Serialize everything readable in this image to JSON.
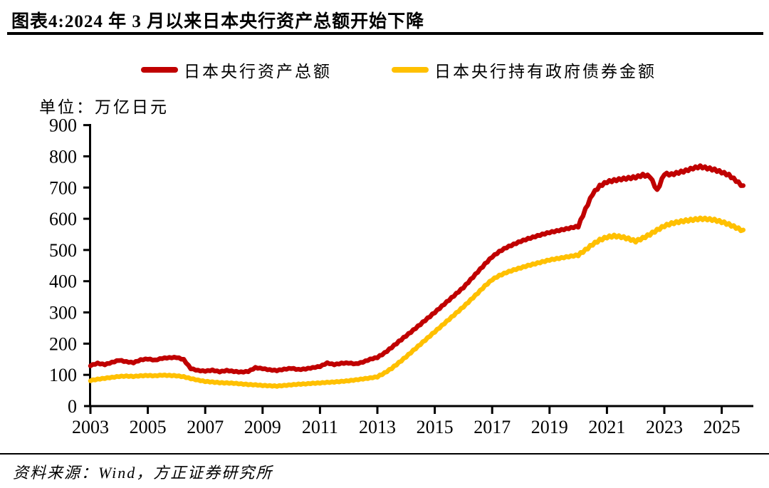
{
  "page": {
    "title": "图表4:2024 年 3 月以来日本央行资产总额开始下降",
    "source": "资料来源：Wind，方正证券研究所"
  },
  "chart_data": {
    "type": "line",
    "title": "图表4:2024 年 3 月以来日本央行资产总额开始下降",
    "unit_label": "单位：万亿日元",
    "xlabel": "",
    "ylabel": "万亿日元",
    "ylim": [
      0,
      900
    ],
    "y_ticks": [
      0,
      100,
      200,
      300,
      400,
      500,
      600,
      700,
      800,
      900
    ],
    "x_ticks": [
      2003,
      2005,
      2007,
      2009,
      2011,
      2013,
      2015,
      2017,
      2019,
      2021,
      2023,
      2025
    ],
    "x_range": [
      2003,
      2026
    ],
    "grid": false,
    "legend_position": "top",
    "colors": {
      "total_assets": "#C00000",
      "gov_bonds": "#FFC000"
    },
    "series": [
      {
        "name": "日本央行资产总额",
        "color": "#C00000",
        "points": [
          [
            2003.0,
            130
          ],
          [
            2003.25,
            137
          ],
          [
            2003.5,
            133
          ],
          [
            2003.75,
            140
          ],
          [
            2004.0,
            147
          ],
          [
            2004.25,
            142
          ],
          [
            2004.5,
            139
          ],
          [
            2004.75,
            148
          ],
          [
            2005.0,
            151
          ],
          [
            2005.25,
            147
          ],
          [
            2005.5,
            153
          ],
          [
            2005.75,
            155
          ],
          [
            2006.0,
            156
          ],
          [
            2006.25,
            149
          ],
          [
            2006.5,
            120
          ],
          [
            2006.75,
            114
          ],
          [
            2007.0,
            112
          ],
          [
            2007.25,
            115
          ],
          [
            2007.5,
            110
          ],
          [
            2007.75,
            114
          ],
          [
            2008.0,
            111
          ],
          [
            2008.25,
            109
          ],
          [
            2008.5,
            111
          ],
          [
            2008.75,
            123
          ],
          [
            2009.0,
            120
          ],
          [
            2009.25,
            116
          ],
          [
            2009.5,
            114
          ],
          [
            2009.75,
            118
          ],
          [
            2010.0,
            121
          ],
          [
            2010.25,
            117
          ],
          [
            2010.5,
            119
          ],
          [
            2010.75,
            123
          ],
          [
            2011.0,
            127
          ],
          [
            2011.25,
            138
          ],
          [
            2011.5,
            133
          ],
          [
            2011.75,
            137
          ],
          [
            2012.0,
            138
          ],
          [
            2012.25,
            135
          ],
          [
            2012.5,
            141
          ],
          [
            2012.75,
            150
          ],
          [
            2013.0,
            156
          ],
          [
            2013.25,
            170
          ],
          [
            2013.5,
            188
          ],
          [
            2013.75,
            207
          ],
          [
            2014.0,
            225
          ],
          [
            2014.25,
            243
          ],
          [
            2014.5,
            262
          ],
          [
            2014.75,
            281
          ],
          [
            2015.0,
            300
          ],
          [
            2015.25,
            320
          ],
          [
            2015.5,
            340
          ],
          [
            2015.75,
            360
          ],
          [
            2016.0,
            380
          ],
          [
            2016.25,
            405
          ],
          [
            2016.5,
            430
          ],
          [
            2016.75,
            455
          ],
          [
            2017.0,
            478
          ],
          [
            2017.25,
            495
          ],
          [
            2017.5,
            508
          ],
          [
            2017.75,
            518
          ],
          [
            2018.0,
            528
          ],
          [
            2018.25,
            536
          ],
          [
            2018.5,
            543
          ],
          [
            2018.75,
            550
          ],
          [
            2019.0,
            556
          ],
          [
            2019.25,
            561
          ],
          [
            2019.5,
            566
          ],
          [
            2019.75,
            571
          ],
          [
            2020.0,
            576
          ],
          [
            2020.25,
            630
          ],
          [
            2020.5,
            680
          ],
          [
            2020.75,
            705
          ],
          [
            2021.0,
            718
          ],
          [
            2021.25,
            723
          ],
          [
            2021.5,
            727
          ],
          [
            2021.75,
            730
          ],
          [
            2022.0,
            733
          ],
          [
            2022.25,
            740
          ],
          [
            2022.5,
            736
          ],
          [
            2022.75,
            690
          ],
          [
            2023.0,
            744
          ],
          [
            2023.25,
            742
          ],
          [
            2023.5,
            748
          ],
          [
            2023.75,
            754
          ],
          [
            2024.0,
            762
          ],
          [
            2024.25,
            767
          ],
          [
            2024.5,
            762
          ],
          [
            2024.75,
            757
          ],
          [
            2025.0,
            749
          ],
          [
            2025.25,
            740
          ],
          [
            2025.5,
            722
          ],
          [
            2025.75,
            703
          ]
        ]
      },
      {
        "name": "日本央行持有政府债券金额",
        "color": "#FFC000",
        "points": [
          [
            2003.0,
            82
          ],
          [
            2003.25,
            86
          ],
          [
            2003.5,
            89
          ],
          [
            2003.75,
            92
          ],
          [
            2004.0,
            95
          ],
          [
            2004.25,
            96
          ],
          [
            2004.5,
            95
          ],
          [
            2004.75,
            97
          ],
          [
            2005.0,
            98
          ],
          [
            2005.25,
            97
          ],
          [
            2005.5,
            99
          ],
          [
            2005.75,
            98
          ],
          [
            2006.0,
            97
          ],
          [
            2006.25,
            94
          ],
          [
            2006.5,
            88
          ],
          [
            2006.75,
            83
          ],
          [
            2007.0,
            79
          ],
          [
            2007.25,
            77
          ],
          [
            2007.5,
            75
          ],
          [
            2007.75,
            74
          ],
          [
            2008.0,
            73
          ],
          [
            2008.25,
            71
          ],
          [
            2008.5,
            69
          ],
          [
            2008.75,
            68
          ],
          [
            2009.0,
            66
          ],
          [
            2009.25,
            65
          ],
          [
            2009.5,
            64
          ],
          [
            2009.75,
            66
          ],
          [
            2010.0,
            68
          ],
          [
            2010.25,
            70
          ],
          [
            2010.5,
            71
          ],
          [
            2010.75,
            73
          ],
          [
            2011.0,
            74
          ],
          [
            2011.25,
            76
          ],
          [
            2011.5,
            77
          ],
          [
            2011.75,
            79
          ],
          [
            2012.0,
            81
          ],
          [
            2012.25,
            84
          ],
          [
            2012.5,
            87
          ],
          [
            2012.75,
            90
          ],
          [
            2013.0,
            94
          ],
          [
            2013.25,
            106
          ],
          [
            2013.5,
            121
          ],
          [
            2013.75,
            139
          ],
          [
            2014.0,
            158
          ],
          [
            2014.25,
            178
          ],
          [
            2014.5,
            198
          ],
          [
            2014.75,
            218
          ],
          [
            2015.0,
            238
          ],
          [
            2015.25,
            258
          ],
          [
            2015.5,
            278
          ],
          [
            2015.75,
            298
          ],
          [
            2016.0,
            318
          ],
          [
            2016.25,
            340
          ],
          [
            2016.5,
            362
          ],
          [
            2016.75,
            385
          ],
          [
            2017.0,
            405
          ],
          [
            2017.25,
            418
          ],
          [
            2017.5,
            428
          ],
          [
            2017.75,
            436
          ],
          [
            2018.0,
            443
          ],
          [
            2018.25,
            450
          ],
          [
            2018.5,
            456
          ],
          [
            2018.75,
            462
          ],
          [
            2019.0,
            468
          ],
          [
            2019.25,
            472
          ],
          [
            2019.5,
            476
          ],
          [
            2019.75,
            480
          ],
          [
            2020.0,
            484
          ],
          [
            2020.25,
            500
          ],
          [
            2020.5,
            518
          ],
          [
            2020.75,
            532
          ],
          [
            2021.0,
            541
          ],
          [
            2021.25,
            545
          ],
          [
            2021.5,
            542
          ],
          [
            2021.75,
            536
          ],
          [
            2022.0,
            528
          ],
          [
            2022.25,
            538
          ],
          [
            2022.5,
            550
          ],
          [
            2022.75,
            564
          ],
          [
            2023.0,
            577
          ],
          [
            2023.25,
            585
          ],
          [
            2023.5,
            590
          ],
          [
            2023.75,
            594
          ],
          [
            2024.0,
            597
          ],
          [
            2024.25,
            600
          ],
          [
            2024.5,
            599
          ],
          [
            2024.75,
            596
          ],
          [
            2025.0,
            590
          ],
          [
            2025.25,
            582
          ],
          [
            2025.5,
            572
          ],
          [
            2025.75,
            561
          ]
        ]
      }
    ]
  }
}
